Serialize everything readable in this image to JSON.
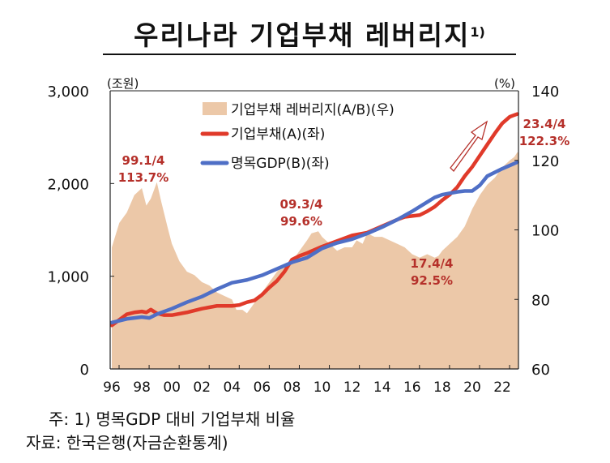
{
  "title": "우리나라 기업부채 레버리지",
  "title_footnote_mark": "1)",
  "footnotes": {
    "note": "주: 1) 명목GDP 대비 기업부채 비율",
    "source": "자료: 한국은행(자금순환통계)"
  },
  "chart_data": {
    "type": "line",
    "title": "우리나라 기업부채 레버리지",
    "left_axis": {
      "unit": "(조원)",
      "ylim": [
        0,
        3000
      ],
      "ticks": [
        "0",
        "1,000",
        "2,000",
        "3,000"
      ],
      "tick_values": [
        0,
        1000,
        2000,
        3000
      ]
    },
    "right_axis": {
      "unit": "(%)",
      "ylim": [
        60,
        140
      ],
      "ticks": [
        "60",
        "80",
        "100",
        "120",
        "140"
      ],
      "tick_values": [
        60,
        80,
        100,
        120,
        140
      ]
    },
    "x_ticks": [
      "96",
      "98",
      "00",
      "02",
      "04",
      "06",
      "08",
      "10",
      "12",
      "14",
      "16",
      "18",
      "20",
      "22"
    ],
    "x_tick_values": [
      1996,
      1998,
      2000,
      2002,
      2004,
      2006,
      2008,
      2010,
      2012,
      2014,
      2016,
      2018,
      2020,
      2022
    ],
    "xlim": [
      1996,
      2023.1
    ],
    "grid": false,
    "legend_position": "top-center",
    "series": [
      {
        "name": "기업부채 레버리지(A/B)(우)",
        "kind": "area",
        "axis": "right",
        "color": "#ecc8a8",
        "x": [
          1996.0,
          1996.5,
          1997.0,
          1997.5,
          1998.0,
          1998.3,
          1998.6,
          1999.0,
          1999.3,
          1999.7,
          2000.0,
          2000.5,
          2001.0,
          2001.5,
          2002.0,
          2002.5,
          2003.0,
          2003.5,
          2004.0,
          2004.3,
          2004.7,
          2005.0,
          2005.5,
          2006.0,
          2006.5,
          2007.0,
          2007.5,
          2008.0,
          2008.5,
          2009.0,
          2009.3,
          2009.75,
          2010.0,
          2010.5,
          2011.0,
          2011.5,
          2012.0,
          2012.3,
          2012.7,
          2013.0,
          2013.5,
          2014.0,
          2014.5,
          2015.0,
          2015.5,
          2016.0,
          2016.5,
          2017.0,
          2017.5,
          2017.75,
          2018.0,
          2018.5,
          2019.0,
          2019.5,
          2020.0,
          2020.5,
          2021.0,
          2021.5,
          2022.0,
          2022.5,
          2022.8,
          2023.0
        ],
        "values": [
          95,
          102,
          105,
          110,
          112,
          107,
          109,
          113.7,
          108,
          101,
          96,
          91,
          88,
          87,
          85,
          84,
          82,
          81,
          80,
          77,
          77,
          76,
          79,
          82,
          85,
          88,
          90,
          91,
          94,
          97,
          99,
          99.6,
          98,
          96,
          94,
          95,
          95,
          97,
          96,
          99,
          98,
          98,
          97,
          96,
          95,
          93,
          92,
          93,
          92,
          92.5,
          94,
          96,
          98,
          101,
          106,
          110,
          113,
          115,
          118,
          120,
          121,
          122.3
        ]
      },
      {
        "name": "기업부채(A)(좌)",
        "kind": "line",
        "axis": "left",
        "color": "#e03a2a",
        "x": [
          1996.0,
          1996.5,
          1997.0,
          1997.5,
          1998.0,
          1998.3,
          1998.6,
          1999.0,
          1999.5,
          2000.0,
          2001.0,
          2002.0,
          2003.0,
          2004.0,
          2004.5,
          2005.0,
          2005.5,
          2006.0,
          2006.5,
          2007.0,
          2007.5,
          2008.0,
          2008.5,
          2009.0,
          2010.0,
          2011.0,
          2012.0,
          2013.0,
          2014.0,
          2015.0,
          2015.5,
          2016.0,
          2016.5,
          2017.0,
          2017.5,
          2018.0,
          2018.5,
          2019.0,
          2019.5,
          2020.0,
          2020.5,
          2021.0,
          2021.5,
          2022.0,
          2022.5,
          2023.0
        ],
        "values": [
          470,
          530,
          590,
          610,
          620,
          610,
          640,
          600,
          580,
          580,
          610,
          650,
          680,
          680,
          690,
          720,
          740,
          800,
          880,
          950,
          1050,
          1180,
          1220,
          1250,
          1320,
          1380,
          1440,
          1470,
          1540,
          1610,
          1640,
          1650,
          1660,
          1700,
          1750,
          1820,
          1880,
          1960,
          2080,
          2180,
          2300,
          2420,
          2540,
          2650,
          2720,
          2750
        ]
      },
      {
        "name": "명목GDP(B)(좌)",
        "kind": "line",
        "axis": "left",
        "color": "#4f6fc6",
        "x": [
          1996.0,
          1997.0,
          1998.0,
          1998.5,
          1999.0,
          2000.0,
          2001.0,
          2002.0,
          2003.0,
          2004.0,
          2005.0,
          2006.0,
          2007.0,
          2008.0,
          2009.0,
          2010.0,
          2011.0,
          2012.0,
          2013.0,
          2014.0,
          2015.0,
          2016.0,
          2017.0,
          2017.5,
          2018.0,
          2019.0,
          2019.5,
          2020.0,
          2020.5,
          2021.0,
          2022.0,
          2023.0
        ],
        "values": [
          500,
          540,
          560,
          550,
          590,
          650,
          720,
          780,
          860,
          930,
          960,
          1010,
          1080,
          1150,
          1200,
          1300,
          1360,
          1400,
          1460,
          1530,
          1610,
          1700,
          1800,
          1850,
          1880,
          1910,
          1920,
          1920,
          1980,
          2080,
          2160,
          2230
        ]
      }
    ],
    "annotations": [
      {
        "label": "99.1/4",
        "value": "113.7%"
      },
      {
        "label": "09.3/4",
        "value": "99.6%"
      },
      {
        "label": "17.4/4",
        "value": "92.5%"
      },
      {
        "label": "23.4/4",
        "value": "122.3%"
      }
    ],
    "annotation_color": "#b5302a"
  }
}
